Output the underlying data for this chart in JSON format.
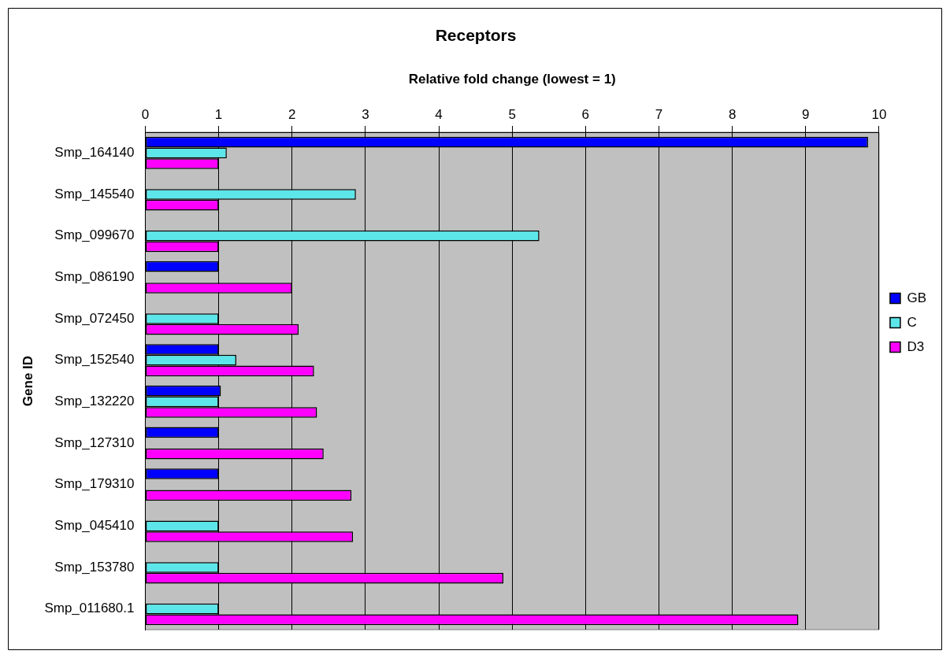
{
  "chart_data": {
    "type": "bar",
    "orientation": "horizontal",
    "title": "Receptors",
    "xlabel": "Relative fold change (lowest = 1)",
    "ylabel": "Gene ID",
    "categories": [
      "Smp_164140",
      "Smp_145540",
      "Smp_099670",
      "Smp_086190",
      "Smp_072450",
      "Smp_152540",
      "Smp_132220",
      "Smp_127310",
      "Smp_179310",
      "Smp_045410",
      "Smp_153780",
      "Smp_011680.1"
    ],
    "series": [
      {
        "name": "GB",
        "color": "#0000ff",
        "values": [
          9.85,
          null,
          null,
          1,
          null,
          1,
          1.03,
          1,
          1,
          null,
          null,
          null
        ]
      },
      {
        "name": "C",
        "color": "#5ce6ea",
        "values": [
          1.11,
          2.87,
          5.37,
          null,
          1,
          1.24,
          1,
          null,
          null,
          1,
          1,
          1
        ]
      },
      {
        "name": "D3",
        "color": "#ff00ff",
        "values": [
          1,
          1,
          1,
          2,
          2.09,
          2.3,
          2.34,
          2.43,
          2.81,
          2.83,
          4.88,
          8.9
        ]
      }
    ],
    "xlim": [
      0,
      10
    ],
    "xticks": [
      0,
      1,
      2,
      3,
      4,
      5,
      6,
      7,
      8,
      9,
      10
    ],
    "grid": "x",
    "legend": "right"
  }
}
